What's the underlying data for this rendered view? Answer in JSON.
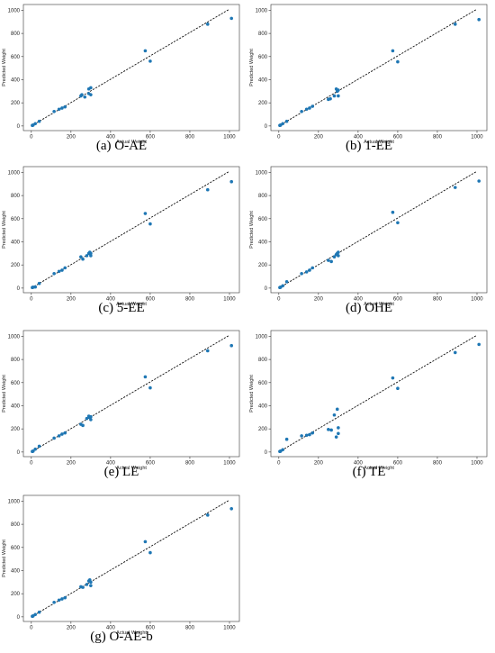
{
  "chart_data": [
    {
      "type": "scatter",
      "caption": "(a) O-AE",
      "xlabel": "Actual Weight",
      "ylabel": "Predicted Weight",
      "xticks": [
        0,
        200,
        400,
        600,
        800,
        1000
      ],
      "yticks": [
        0,
        200,
        400,
        600,
        800,
        1000
      ],
      "xlim": [
        -40,
        1050
      ],
      "ylim": [
        -40,
        1050
      ],
      "reference_line": [
        [
          0,
          0
        ],
        [
          1000,
          1010
        ]
      ],
      "points": [
        [
          5,
          5
        ],
        [
          9,
          8
        ],
        [
          20,
          20
        ],
        [
          40,
          40
        ],
        [
          115,
          125
        ],
        [
          140,
          145
        ],
        [
          155,
          155
        ],
        [
          170,
          165
        ],
        [
          250,
          260
        ],
        [
          255,
          270
        ],
        [
          270,
          250
        ],
        [
          290,
          280
        ],
        [
          290,
          320
        ],
        [
          300,
          330
        ],
        [
          300,
          270
        ],
        [
          575,
          650
        ],
        [
          600,
          560
        ],
        [
          890,
          880
        ],
        [
          1010,
          930
        ]
      ],
      "point_color": "#1f77b4"
    },
    {
      "type": "scatter",
      "caption": "(b) 1-EE",
      "xlabel": "Actual Weight",
      "ylabel": "Predicted Weight",
      "xticks": [
        0,
        200,
        400,
        600,
        800,
        1000
      ],
      "yticks": [
        0,
        200,
        400,
        600,
        800,
        1000
      ],
      "xlim": [
        -40,
        1050
      ],
      "ylim": [
        -40,
        1050
      ],
      "reference_line": [
        [
          0,
          0
        ],
        [
          1000,
          1010
        ]
      ],
      "points": [
        [
          5,
          5
        ],
        [
          9,
          8
        ],
        [
          20,
          20
        ],
        [
          40,
          40
        ],
        [
          115,
          125
        ],
        [
          140,
          145
        ],
        [
          155,
          155
        ],
        [
          170,
          170
        ],
        [
          250,
          230
        ],
        [
          260,
          235
        ],
        [
          280,
          260
        ],
        [
          290,
          320
        ],
        [
          295,
          300
        ],
        [
          300,
          310
        ],
        [
          300,
          260
        ],
        [
          575,
          650
        ],
        [
          600,
          555
        ],
        [
          890,
          880
        ],
        [
          1010,
          920
        ]
      ],
      "point_color": "#1f77b4"
    },
    {
      "type": "scatter",
      "caption": "(c) 5-EE",
      "xlabel": "Actual Weight",
      "ylabel": "Predicted Weight",
      "xticks": [
        0,
        200,
        400,
        600,
        800,
        1000
      ],
      "yticks": [
        0,
        200,
        400,
        600,
        800,
        1000
      ],
      "xlim": [
        -40,
        1050
      ],
      "ylim": [
        -40,
        1050
      ],
      "reference_line": [
        [
          0,
          0
        ],
        [
          1000,
          1010
        ]
      ],
      "points": [
        [
          5,
          5
        ],
        [
          9,
          8
        ],
        [
          20,
          10
        ],
        [
          40,
          40
        ],
        [
          115,
          125
        ],
        [
          140,
          145
        ],
        [
          155,
          155
        ],
        [
          170,
          175
        ],
        [
          250,
          270
        ],
        [
          260,
          250
        ],
        [
          280,
          280
        ],
        [
          290,
          300
        ],
        [
          295,
          310
        ],
        [
          300,
          300
        ],
        [
          300,
          280
        ],
        [
          575,
          645
        ],
        [
          600,
          555
        ],
        [
          890,
          850
        ],
        [
          1010,
          920
        ]
      ],
      "point_color": "#1f77b4"
    },
    {
      "type": "scatter",
      "caption": "(d) OHE",
      "xlabel": "Actual Weight",
      "ylabel": "Predicted Weight",
      "xticks": [
        0,
        200,
        400,
        600,
        800,
        1000
      ],
      "yticks": [
        0,
        200,
        400,
        600,
        800,
        1000
      ],
      "xlim": [
        -40,
        1050
      ],
      "ylim": [
        -40,
        1050
      ],
      "reference_line": [
        [
          0,
          0
        ],
        [
          1000,
          1010
        ]
      ],
      "points": [
        [
          5,
          5
        ],
        [
          9,
          8
        ],
        [
          20,
          20
        ],
        [
          40,
          55
        ],
        [
          115,
          125
        ],
        [
          140,
          140
        ],
        [
          155,
          155
        ],
        [
          170,
          175
        ],
        [
          250,
          240
        ],
        [
          265,
          230
        ],
        [
          280,
          270
        ],
        [
          290,
          290
        ],
        [
          295,
          300
        ],
        [
          300,
          310
        ],
        [
          300,
          280
        ],
        [
          575,
          655
        ],
        [
          600,
          565
        ],
        [
          890,
          870
        ],
        [
          1010,
          925
        ]
      ],
      "point_color": "#1f77b4"
    },
    {
      "type": "scatter",
      "caption": "(e) LE",
      "xlabel": "Actual Weight",
      "ylabel": "Predicted Weight",
      "xticks": [
        0,
        200,
        400,
        600,
        800,
        1000
      ],
      "yticks": [
        0,
        200,
        400,
        600,
        800,
        1000
      ],
      "xlim": [
        -40,
        1050
      ],
      "ylim": [
        -40,
        1050
      ],
      "reference_line": [
        [
          0,
          0
        ],
        [
          1000,
          1010
        ]
      ],
      "points": [
        [
          5,
          5
        ],
        [
          9,
          8
        ],
        [
          20,
          25
        ],
        [
          40,
          50
        ],
        [
          115,
          120
        ],
        [
          140,
          140
        ],
        [
          155,
          155
        ],
        [
          170,
          165
        ],
        [
          250,
          240
        ],
        [
          260,
          230
        ],
        [
          280,
          290
        ],
        [
          290,
          310
        ],
        [
          295,
          300
        ],
        [
          300,
          305
        ],
        [
          300,
          280
        ],
        [
          575,
          650
        ],
        [
          600,
          555
        ],
        [
          890,
          875
        ],
        [
          1010,
          920
        ]
      ],
      "point_color": "#1f77b4"
    },
    {
      "type": "scatter",
      "caption": "(f) TE",
      "xlabel": "Actual Weight",
      "ylabel": "Predicted Weight",
      "xticks": [
        0,
        200,
        400,
        600,
        800,
        1000
      ],
      "yticks": [
        0,
        200,
        400,
        600,
        800,
        1000
      ],
      "xlim": [
        -40,
        1050
      ],
      "ylim": [
        -40,
        1050
      ],
      "reference_line": [
        [
          0,
          0
        ],
        [
          1000,
          1010
        ]
      ],
      "points": [
        [
          5,
          5
        ],
        [
          9,
          8
        ],
        [
          20,
          20
        ],
        [
          40,
          110
        ],
        [
          115,
          140
        ],
        [
          140,
          145
        ],
        [
          155,
          150
        ],
        [
          170,
          165
        ],
        [
          250,
          195
        ],
        [
          265,
          190
        ],
        [
          280,
          320
        ],
        [
          290,
          130
        ],
        [
          295,
          370
        ],
        [
          300,
          210
        ],
        [
          300,
          160
        ],
        [
          575,
          640
        ],
        [
          600,
          550
        ],
        [
          890,
          860
        ],
        [
          1010,
          930
        ]
      ],
      "point_color": "#1f77b4"
    },
    {
      "type": "scatter",
      "caption": "(g) O-AE-b",
      "xlabel": "Actual Weight",
      "ylabel": "Predicted Weight",
      "xticks": [
        0,
        200,
        400,
        600,
        800,
        1000
      ],
      "yticks": [
        0,
        200,
        400,
        600,
        800,
        1000
      ],
      "xlim": [
        -40,
        1050
      ],
      "ylim": [
        -40,
        1050
      ],
      "reference_line": [
        [
          0,
          0
        ],
        [
          1000,
          1010
        ]
      ],
      "points": [
        [
          5,
          5
        ],
        [
          9,
          8
        ],
        [
          20,
          20
        ],
        [
          40,
          40
        ],
        [
          115,
          125
        ],
        [
          140,
          145
        ],
        [
          155,
          155
        ],
        [
          170,
          165
        ],
        [
          250,
          260
        ],
        [
          260,
          255
        ],
        [
          280,
          280
        ],
        [
          290,
          310
        ],
        [
          295,
          320
        ],
        [
          300,
          300
        ],
        [
          300,
          270
        ],
        [
          575,
          650
        ],
        [
          600,
          555
        ],
        [
          890,
          880
        ],
        [
          1010,
          935
        ]
      ],
      "point_color": "#1f77b4"
    }
  ]
}
